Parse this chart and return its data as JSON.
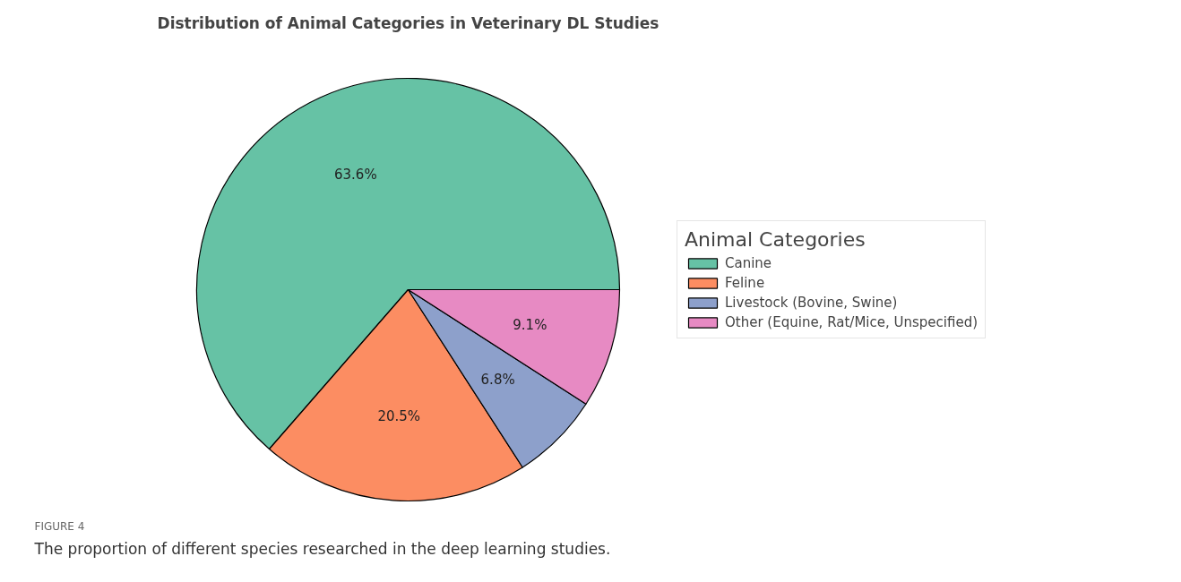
{
  "chart_data": {
    "type": "pie",
    "title": "Distribution of Animal Categories in Veterinary DL Studies",
    "categories": [
      "Canine",
      "Feline",
      "Livestock (Bovine, Swine)",
      "Other (Equine, Rat/Mice, Unspecified)"
    ],
    "values": [
      63.6,
      20.5,
      6.8,
      9.1
    ],
    "colors": [
      "#66c2a5",
      "#fc8d62",
      "#8da0cb",
      "#e78ac3"
    ],
    "value_labels": [
      "63.6%",
      "20.5%",
      "6.8%",
      "9.1%"
    ],
    "legend": "right",
    "legend_title": "Animal Categories",
    "annotations": [
      "FIGURE 4",
      "The proportion of different species researched in the deep learning studies."
    ]
  }
}
